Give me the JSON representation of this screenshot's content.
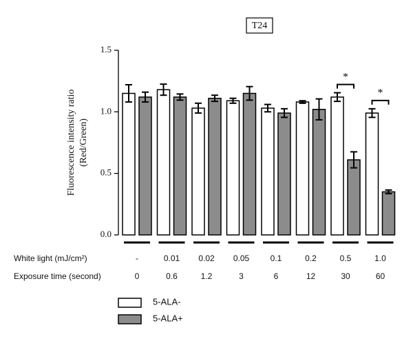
{
  "chart_data": {
    "type": "bar",
    "title": "T24",
    "ylabel": [
      "Fluorescence intensity ratio",
      "(Red/Green)"
    ],
    "category_label": "White light (mJ/cm²)",
    "categories": [
      "-",
      "0.01",
      "0.02",
      "0.05",
      "0.1",
      "0.2",
      "0.5",
      "1.0"
    ],
    "exposure_label": "Exposure time (second)",
    "exposure_times": [
      "0",
      "0.6",
      "1.2",
      "3",
      "6",
      "12",
      "30",
      "60"
    ],
    "series": [
      {
        "name": "5-ALA-",
        "color": "#ffffff",
        "values": [
          1.15,
          1.18,
          1.03,
          1.09,
          1.03,
          1.08,
          1.12,
          0.99
        ],
        "errors": [
          0.07,
          0.045,
          0.04,
          0.02,
          0.03,
          0.01,
          0.035,
          0.035
        ]
      },
      {
        "name": "5-ALA+",
        "color": "#8c8c8c",
        "values": [
          1.12,
          1.12,
          1.11,
          1.15,
          0.99,
          1.02,
          0.61,
          0.35
        ],
        "errors": [
          0.04,
          0.025,
          0.025,
          0.055,
          0.035,
          0.085,
          0.065,
          0.015
        ]
      }
    ],
    "annotations": [
      {
        "label": "*"
      },
      {
        "label": "*"
      }
    ],
    "ylim": [
      0,
      1.5
    ],
    "yticks": [
      {
        "value": 0,
        "label": "0.0"
      },
      0.5,
      {
        "value": 1,
        "label": "1.0"
      },
      1.5
    ]
  }
}
